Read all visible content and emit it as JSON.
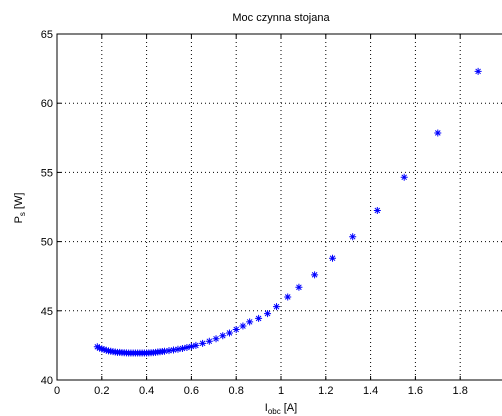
{
  "chart_data": {
    "type": "scatter",
    "title": "Moc czynna stojana",
    "xlabel": {
      "main": "I",
      "sub": "obc",
      "unit": "[A]"
    },
    "ylabel": {
      "main": "P",
      "sub": "s",
      "unit": "[W]"
    },
    "xlim": [
      0,
      2
    ],
    "ylim": [
      40,
      65
    ],
    "xticks": [
      0,
      0.2,
      0.4,
      0.6,
      0.8,
      1,
      1.2,
      1.4,
      1.6,
      1.8,
      2
    ],
    "xtick_labels": [
      "0",
      "0.2",
      "0.4",
      "0.6",
      "0.8",
      "1",
      "1.2",
      "1.4",
      "1.6",
      "1.8",
      "2"
    ],
    "yticks": [
      40,
      45,
      50,
      55,
      60,
      65
    ],
    "ytick_labels": [
      "40",
      "45",
      "50",
      "55",
      "60",
      "65"
    ],
    "grid": true,
    "marker": "*",
    "color": "#0000ff",
    "series": [
      {
        "x": [
          0.18,
          0.19,
          0.2,
          0.21,
          0.22,
          0.23,
          0.24,
          0.25,
          0.26,
          0.27,
          0.28,
          0.29,
          0.3,
          0.31,
          0.32,
          0.33,
          0.34,
          0.35,
          0.36,
          0.37,
          0.38,
          0.39,
          0.4,
          0.41,
          0.42,
          0.43,
          0.44,
          0.45,
          0.46,
          0.47,
          0.48,
          0.5,
          0.52,
          0.54,
          0.56,
          0.58,
          0.6,
          0.62,
          0.65,
          0.68,
          0.71,
          0.74,
          0.77,
          0.8,
          0.83,
          0.86,
          0.9,
          0.94,
          0.98,
          1.03,
          1.08,
          1.15,
          1.23,
          1.32,
          1.43,
          1.55,
          1.7,
          1.88
        ],
        "y": [
          42.4,
          42.3,
          42.25,
          42.2,
          42.15,
          42.1,
          42.08,
          42.05,
          42.02,
          42.0,
          42.0,
          41.98,
          41.97,
          41.96,
          41.95,
          41.95,
          41.95,
          41.95,
          41.95,
          41.95,
          41.95,
          41.95,
          41.95,
          41.96,
          41.97,
          41.98,
          42.0,
          42.02,
          42.04,
          42.06,
          42.08,
          42.12,
          42.17,
          42.22,
          42.28,
          42.35,
          42.42,
          42.5,
          42.65,
          42.8,
          42.98,
          43.2,
          43.4,
          43.65,
          43.9,
          44.2,
          44.45,
          44.8,
          45.3,
          46.0,
          46.7,
          47.6,
          48.8,
          50.35,
          52.25,
          54.65,
          57.85,
          62.3
        ]
      }
    ]
  }
}
